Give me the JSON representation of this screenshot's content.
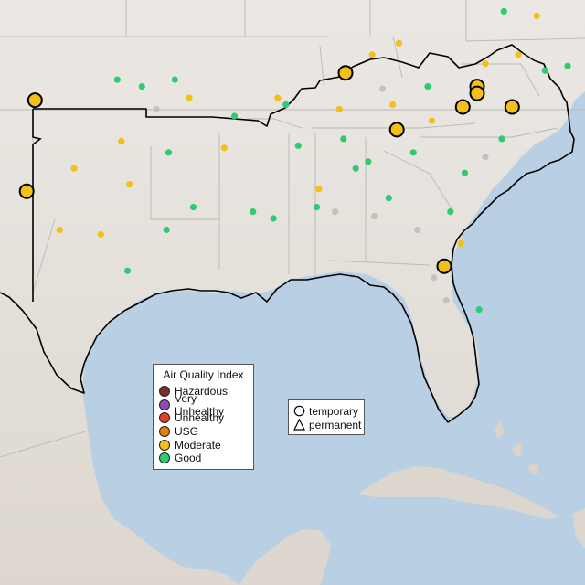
{
  "map": {
    "colors": {
      "water": "#b9cfe3",
      "land": "#e9e6e2",
      "land_south": "#dcd6cf",
      "state_border": "#b9b9b9",
      "region_outline": "#000000",
      "station_gray": "#c2c2c2"
    }
  },
  "legend_aqi": {
    "title": "Air Quality Index",
    "items": [
      {
        "label": "Hazardous",
        "color": "#7e2b2b"
      },
      {
        "label": "Very Unhealthy",
        "color": "#8f4bb5"
      },
      {
        "label": "Unhealthy",
        "color": "#e2402b"
      },
      {
        "label": "USG",
        "color": "#e87b12"
      },
      {
        "label": "Moderate",
        "color": "#f2c018"
      },
      {
        "label": "Good",
        "color": "#2fcb74"
      }
    ]
  },
  "legend_type": {
    "items": [
      {
        "label": "temporary",
        "icon": "circle-icon"
      },
      {
        "label": "permanent",
        "icon": "triangle-icon"
      }
    ]
  },
  "stations": [
    {
      "lon": -101.8,
      "lat": 35.3,
      "category": "Moderate",
      "kind": "temporary"
    },
    {
      "lon": -102.2,
      "lat": 31.3,
      "category": "Moderate",
      "kind": "temporary"
    },
    {
      "lon": -86.7,
      "lat": 36.5,
      "category": "Moderate",
      "kind": "temporary"
    },
    {
      "lon": -84.2,
      "lat": 34.0,
      "category": "Moderate",
      "kind": "temporary"
    },
    {
      "lon": -81.0,
      "lat": 35.0,
      "category": "Moderate",
      "kind": "temporary"
    },
    {
      "lon": -80.3,
      "lat": 35.9,
      "category": "Moderate",
      "kind": "temporary"
    },
    {
      "lon": -80.3,
      "lat": 35.6,
      "category": "Moderate",
      "kind": "temporary"
    },
    {
      "lon": -78.6,
      "lat": 35.0,
      "category": "Moderate",
      "kind": "temporary"
    },
    {
      "lon": -81.9,
      "lat": 28.0,
      "category": "Moderate",
      "kind": "temporary"
    },
    {
      "lon": -97.8,
      "lat": 36.2,
      "category": "Good",
      "kind": "permanent"
    },
    {
      "lon": -96.6,
      "lat": 35.9,
      "category": "Good",
      "kind": "permanent"
    },
    {
      "lon": -95.0,
      "lat": 36.2,
      "category": "Good",
      "kind": "permanent"
    },
    {
      "lon": -95.3,
      "lat": 33.0,
      "category": "Good",
      "kind": "permanent"
    },
    {
      "lon": -94.1,
      "lat": 30.6,
      "category": "Good",
      "kind": "permanent"
    },
    {
      "lon": -91.2,
      "lat": 30.4,
      "category": "Good",
      "kind": "permanent"
    },
    {
      "lon": -90.2,
      "lat": 30.1,
      "category": "Good",
      "kind": "permanent"
    },
    {
      "lon": -89.0,
      "lat": 33.3,
      "category": "Good",
      "kind": "permanent"
    },
    {
      "lon": -86.8,
      "lat": 33.6,
      "category": "Good",
      "kind": "permanent"
    },
    {
      "lon": -85.6,
      "lat": 32.6,
      "category": "Good",
      "kind": "permanent"
    },
    {
      "lon": -88.1,
      "lat": 30.6,
      "category": "Good",
      "kind": "permanent"
    },
    {
      "lon": -83.4,
      "lat": 33.0,
      "category": "Good",
      "kind": "permanent"
    },
    {
      "lon": -81.6,
      "lat": 30.4,
      "category": "Good",
      "kind": "permanent"
    },
    {
      "lon": -80.9,
      "lat": 32.1,
      "category": "Good",
      "kind": "permanent"
    },
    {
      "lon": -79.1,
      "lat": 33.6,
      "category": "Good",
      "kind": "permanent"
    },
    {
      "lon": -77.0,
      "lat": 36.6,
      "category": "Good",
      "kind": "permanent"
    },
    {
      "lon": -75.9,
      "lat": 36.8,
      "category": "Good",
      "kind": "permanent"
    },
    {
      "lon": -79.0,
      "lat": 39.2,
      "category": "Good",
      "kind": "permanent"
    },
    {
      "lon": -82.7,
      "lat": 35.9,
      "category": "Good",
      "kind": "permanent"
    },
    {
      "lon": -80.2,
      "lat": 26.1,
      "category": "Good",
      "kind": "permanent"
    },
    {
      "lon": -97.3,
      "lat": 27.8,
      "category": "Good",
      "kind": "permanent"
    },
    {
      "lon": -95.4,
      "lat": 29.6,
      "category": "Good",
      "kind": "permanent"
    },
    {
      "lon": -92.1,
      "lat": 34.6,
      "category": "Good",
      "kind": "permanent"
    },
    {
      "lon": -89.6,
      "lat": 35.1,
      "category": "Good",
      "kind": "permanent"
    },
    {
      "lon": -84.6,
      "lat": 31.0,
      "category": "Good",
      "kind": "permanent"
    },
    {
      "lon": -86.2,
      "lat": 32.3,
      "category": "Good",
      "kind": "permanent"
    },
    {
      "lon": -99.9,
      "lat": 32.3,
      "category": "Moderate",
      "kind": "permanent"
    },
    {
      "lon": -97.6,
      "lat": 33.5,
      "category": "Moderate",
      "kind": "permanent"
    },
    {
      "lon": -94.3,
      "lat": 35.4,
      "category": "Moderate",
      "kind": "permanent"
    },
    {
      "lon": -92.6,
      "lat": 33.2,
      "category": "Moderate",
      "kind": "permanent"
    },
    {
      "lon": -90.0,
      "lat": 35.4,
      "category": "Moderate",
      "kind": "permanent"
    },
    {
      "lon": -87.0,
      "lat": 34.9,
      "category": "Moderate",
      "kind": "permanent"
    },
    {
      "lon": -84.4,
      "lat": 35.1,
      "category": "Moderate",
      "kind": "permanent"
    },
    {
      "lon": -82.5,
      "lat": 34.4,
      "category": "Moderate",
      "kind": "permanent"
    },
    {
      "lon": -79.9,
      "lat": 36.9,
      "category": "Moderate",
      "kind": "permanent"
    },
    {
      "lon": -78.3,
      "lat": 37.3,
      "category": "Moderate",
      "kind": "permanent"
    },
    {
      "lon": -84.1,
      "lat": 37.8,
      "category": "Moderate",
      "kind": "permanent"
    },
    {
      "lon": -85.4,
      "lat": 37.3,
      "category": "Moderate",
      "kind": "permanent"
    },
    {
      "lon": -81.1,
      "lat": 29.0,
      "category": "Moderate",
      "kind": "permanent"
    },
    {
      "lon": -100.6,
      "lat": 29.6,
      "category": "Moderate",
      "kind": "permanent"
    },
    {
      "lon": -98.6,
      "lat": 29.4,
      "category": "Moderate",
      "kind": "permanent"
    },
    {
      "lon": -97.2,
      "lat": 31.6,
      "category": "Moderate",
      "kind": "permanent"
    },
    {
      "lon": -88.0,
      "lat": 31.4,
      "category": "Moderate",
      "kind": "permanent"
    },
    {
      "lon": -77.4,
      "lat": 39.0,
      "category": "Moderate",
      "kind": "permanent"
    },
    {
      "lon": -82.4,
      "lat": 27.5,
      "category": "station",
      "kind": "permanent"
    },
    {
      "lon": -81.8,
      "lat": 26.5,
      "category": "station",
      "kind": "permanent"
    },
    {
      "lon": -84.9,
      "lat": 35.8,
      "category": "station",
      "kind": "permanent"
    },
    {
      "lon": -85.3,
      "lat": 30.2,
      "category": "station",
      "kind": "permanent"
    },
    {
      "lon": -83.2,
      "lat": 29.6,
      "category": "station",
      "kind": "permanent"
    },
    {
      "lon": -87.2,
      "lat": 30.4,
      "category": "station",
      "kind": "permanent"
    },
    {
      "lon": -79.9,
      "lat": 32.8,
      "category": "station",
      "kind": "permanent"
    },
    {
      "lon": -95.9,
      "lat": 34.9,
      "category": "station",
      "kind": "permanent"
    }
  ]
}
